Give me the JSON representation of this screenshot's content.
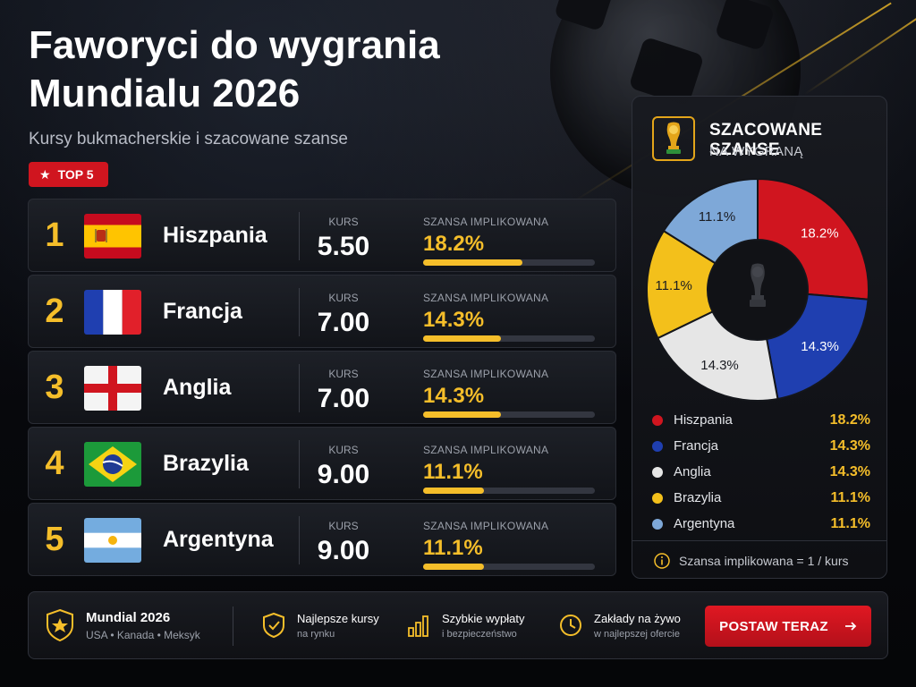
{
  "header": {
    "title": "Faworyci do wygrania Mundialu 2026",
    "subtitle": "Kursy bukmacherskie i szacowane szanse",
    "badge": "TOP 5"
  },
  "colors": {
    "accent": "#f5be2a",
    "brand_red": "#d0151f"
  },
  "favorites": [
    {
      "rank": "1",
      "team": "Hiszpania",
      "flag": "spain-flag",
      "kurs_label": "KURS",
      "kurs": "5.50",
      "szansa_label": "SZANSA IMPLIKOWANA",
      "szansa": "18.2%",
      "szansa_value": 18.2
    },
    {
      "rank": "2",
      "team": "Francja",
      "flag": "france-flag",
      "kurs_label": "KURS",
      "kurs": "7.00",
      "szansa_label": "SZANSA IMPLIKOWANA",
      "szansa": "14.3%",
      "szansa_value": 14.3
    },
    {
      "rank": "3",
      "team": "Anglia",
      "flag": "england-flag",
      "kurs_label": "KURS",
      "kurs": "7.00",
      "szansa_label": "SZANSA IMPLIKOWANA",
      "szansa": "14.3%",
      "szansa_value": 14.3
    },
    {
      "rank": "4",
      "team": "Brazylia",
      "flag": "brazil-flag",
      "kurs_label": "KURS",
      "kurs": "9.00",
      "szansa_label": "SZANSA IMPLIKOWANA",
      "szansa": "11.1%",
      "szansa_value": 11.1
    },
    {
      "rank": "5",
      "team": "Argentyna",
      "flag": "argentina-flag",
      "kurs_label": "KURS",
      "kurs": "9.00",
      "szansa_label": "SZANSA IMPLIKOWANA",
      "szansa": "11.1%",
      "szansa_value": 11.1
    }
  ],
  "panel": {
    "icon": "trophy-icon",
    "title": "SZACOWANE SZANSE",
    "subtitle": "NA WYGRANĄ",
    "note_icon": "info-icon",
    "note": "Szansa implikowana = 1 / kurs"
  },
  "chart_data": {
    "type": "pie",
    "categories": [
      "Hiszpania",
      "Francja",
      "Anglia",
      "Brazylia",
      "Argentyna"
    ],
    "values": [
      18.2,
      14.3,
      14.3,
      11.1,
      11.1
    ],
    "labels": [
      "18.2%",
      "14.3%",
      "14.3%",
      "11.1%",
      "11.1%"
    ],
    "colors": [
      "#d0151f",
      "#1f3fb0",
      "#e6e6e6",
      "#f3c01b",
      "#7ea8d8"
    ],
    "title": "",
    "legend": "bottom"
  },
  "footer": {
    "event_icon": "star-shield-icon",
    "event_title": "Mundial 2026",
    "event_sub": "USA • Kanada • Meksyk",
    "features": [
      {
        "icon": "shield-check-icon",
        "title": "Najlepsze kursy",
        "sub": "na rynku"
      },
      {
        "icon": "bar-chart-icon",
        "title": "Szybkie wypłaty",
        "sub": "i bezpieczeństwo"
      },
      {
        "icon": "clock-icon",
        "title": "Zakłady na żywo",
        "sub": "w najlepszej ofercie"
      }
    ],
    "cta_label": "POSTAW TERAZ",
    "cta_icon": "arrow-right-icon"
  }
}
